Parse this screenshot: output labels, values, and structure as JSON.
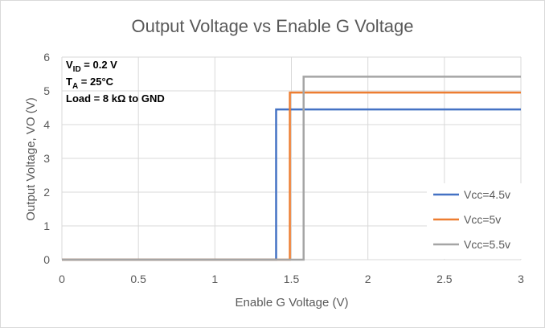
{
  "chart_data": {
    "type": "line",
    "title": "Output Voltage vs Enable G Voltage",
    "xlabel": "Enable G Voltage (V)",
    "ylabel": "Output Voltage, VO (V)",
    "xlim": [
      0,
      3
    ],
    "ylim": [
      0,
      6
    ],
    "xticks": [
      "0",
      "0.5",
      "1",
      "1.5",
      "2",
      "2.5",
      "3"
    ],
    "yticks": [
      "0",
      "1",
      "2",
      "3",
      "4",
      "5",
      "6"
    ],
    "grid": true,
    "legend_position": "bottom-right",
    "annotations": {
      "vid": {
        "main": "V",
        "sub": "ID",
        "rest": " = 0.2 V"
      },
      "ta": {
        "main": "T",
        "sub": "A",
        "rest": " = 25°C"
      },
      "load": "Load = 8 kΩ to GND"
    },
    "series": [
      {
        "name": "Vcc=4.5v",
        "color": "#4472c4",
        "x": [
          0,
          1.4,
          1.4,
          3
        ],
        "y": [
          0,
          0,
          4.45,
          4.45
        ]
      },
      {
        "name": "Vcc=5v",
        "color": "#ed7d31",
        "x": [
          0,
          1.49,
          1.49,
          3
        ],
        "y": [
          0,
          0,
          4.95,
          4.95
        ]
      },
      {
        "name": "Vcc=5.5v",
        "color": "#a5a5a5",
        "x": [
          0,
          1.58,
          1.58,
          3
        ],
        "y": [
          0,
          0,
          5.42,
          5.42
        ]
      }
    ]
  }
}
